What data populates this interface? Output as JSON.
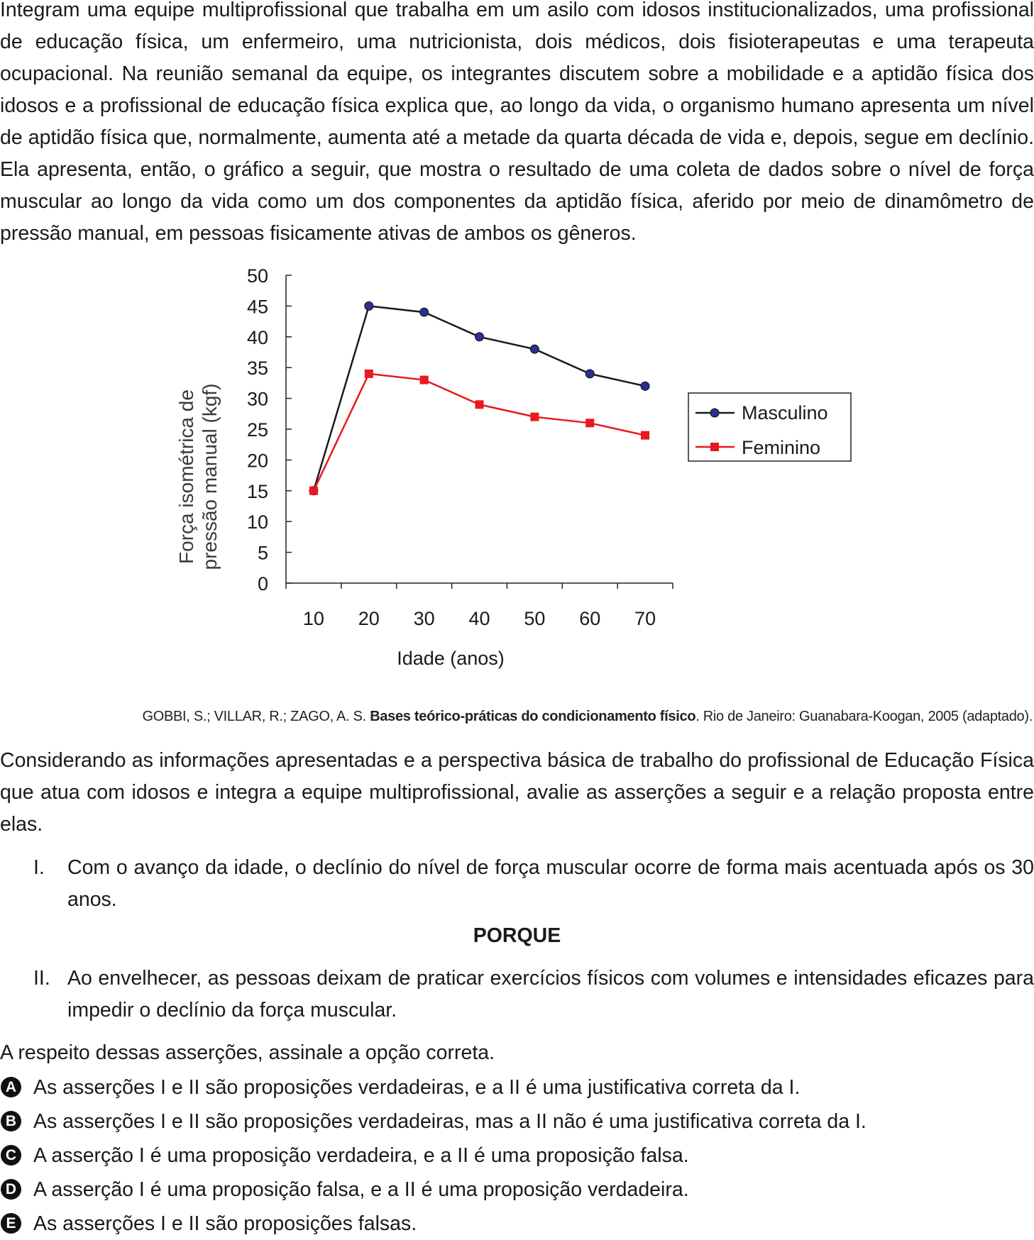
{
  "intro_text": "Integram uma equipe multiprofissional que trabalha em um asilo com idosos institucionalizados, uma profissional de educação física, um enfermeiro, uma nutricionista, dois médicos, dois fisioterapeutas e uma terapeuta ocupacional. Na reunião semanal da equipe, os integrantes discutem sobre a mobilidade e a aptidão física dos idosos e a profissional de educação física explica que, ao longo da vida, o organismo humano apresenta um nível de aptidão física que, normalmente, aumenta até a metade da quarta década de vida e, depois, segue em declínio. Ela apresenta, então, o gráfico a seguir, que mostra o resultado de uma coleta de dados sobre o nível de força muscular ao longo da vida como um dos componentes da aptidão física, aferido por meio de dinamômetro de pressão manual, em pessoas fisicamente ativas de ambos os gêneros.",
  "chart_data": {
    "type": "line",
    "x": [
      10,
      20,
      30,
      40,
      50,
      60,
      70
    ],
    "series": [
      {
        "name": "Masculino",
        "values": [
          15,
          45,
          44,
          40,
          38,
          34,
          32
        ],
        "color": "#1a1a1a",
        "marker": "circle",
        "marker_color": "#2b2f8f"
      },
      {
        "name": "Feminino",
        "values": [
          15,
          34,
          33,
          29,
          27,
          26,
          24
        ],
        "color": "#e8191f",
        "marker": "square",
        "marker_color": "#e8191f"
      }
    ],
    "ylabel_line1": "Força isométrica de",
    "ylabel_line2": "pressão manual (kgf)",
    "xlabel": "Idade (anos)",
    "yticks": [
      "0",
      "5",
      "10",
      "15",
      "20",
      "25",
      "30",
      "35",
      "40",
      "45",
      "50"
    ],
    "xticks": [
      "10",
      "20",
      "30",
      "40",
      "50",
      "60",
      "70"
    ],
    "ylim": [
      0,
      50
    ],
    "xlim": [
      5,
      75
    ],
    "grid": false,
    "legend_position": "right"
  },
  "source": {
    "authors": "GOBBI, S.; VILLAR, R.; ZAGO, A. S.",
    "title": "Bases teórico-práticas do condicionamento físico",
    "publisher": ". Rio de Janeiro: Guanabara-Koogan, 2005 (adaptado)."
  },
  "consider_text": "Considerando as informações apresentadas e a perspectiva básica de trabalho do profissional de Educação Física que atua com idosos e integra a equipe multiprofissional, avalie as asserções a seguir e a relação proposta entre elas.",
  "assertions": [
    {
      "num": "I.",
      "text": "Com o avanço da idade, o declínio do nível de força muscular ocorre de forma mais acentuada após os 30 anos."
    },
    {
      "num": "II.",
      "text": "Ao envelhecer, as pessoas deixam de praticar exercícios físicos com volumes e intensidades eficazes para impedir o declínio da força muscular."
    }
  ],
  "connector": "PORQUE",
  "question": "A respeito dessas asserções, assinale a opção correta.",
  "options": [
    {
      "letter": "A",
      "text": "As asserções I e II são proposições verdadeiras, e a II é uma justificativa correta da I."
    },
    {
      "letter": "B",
      "text": "As asserções I e II são proposições verdadeiras, mas a II não é uma justificativa correta da I."
    },
    {
      "letter": "C",
      "text": "A asserção I é uma proposição verdadeira, e a II é uma proposição falsa."
    },
    {
      "letter": "D",
      "text": "A asserção I é uma proposição falsa, e a II é uma proposição verdadeira."
    },
    {
      "letter": "E",
      "text": "As asserções I e II são proposições falsas."
    }
  ]
}
